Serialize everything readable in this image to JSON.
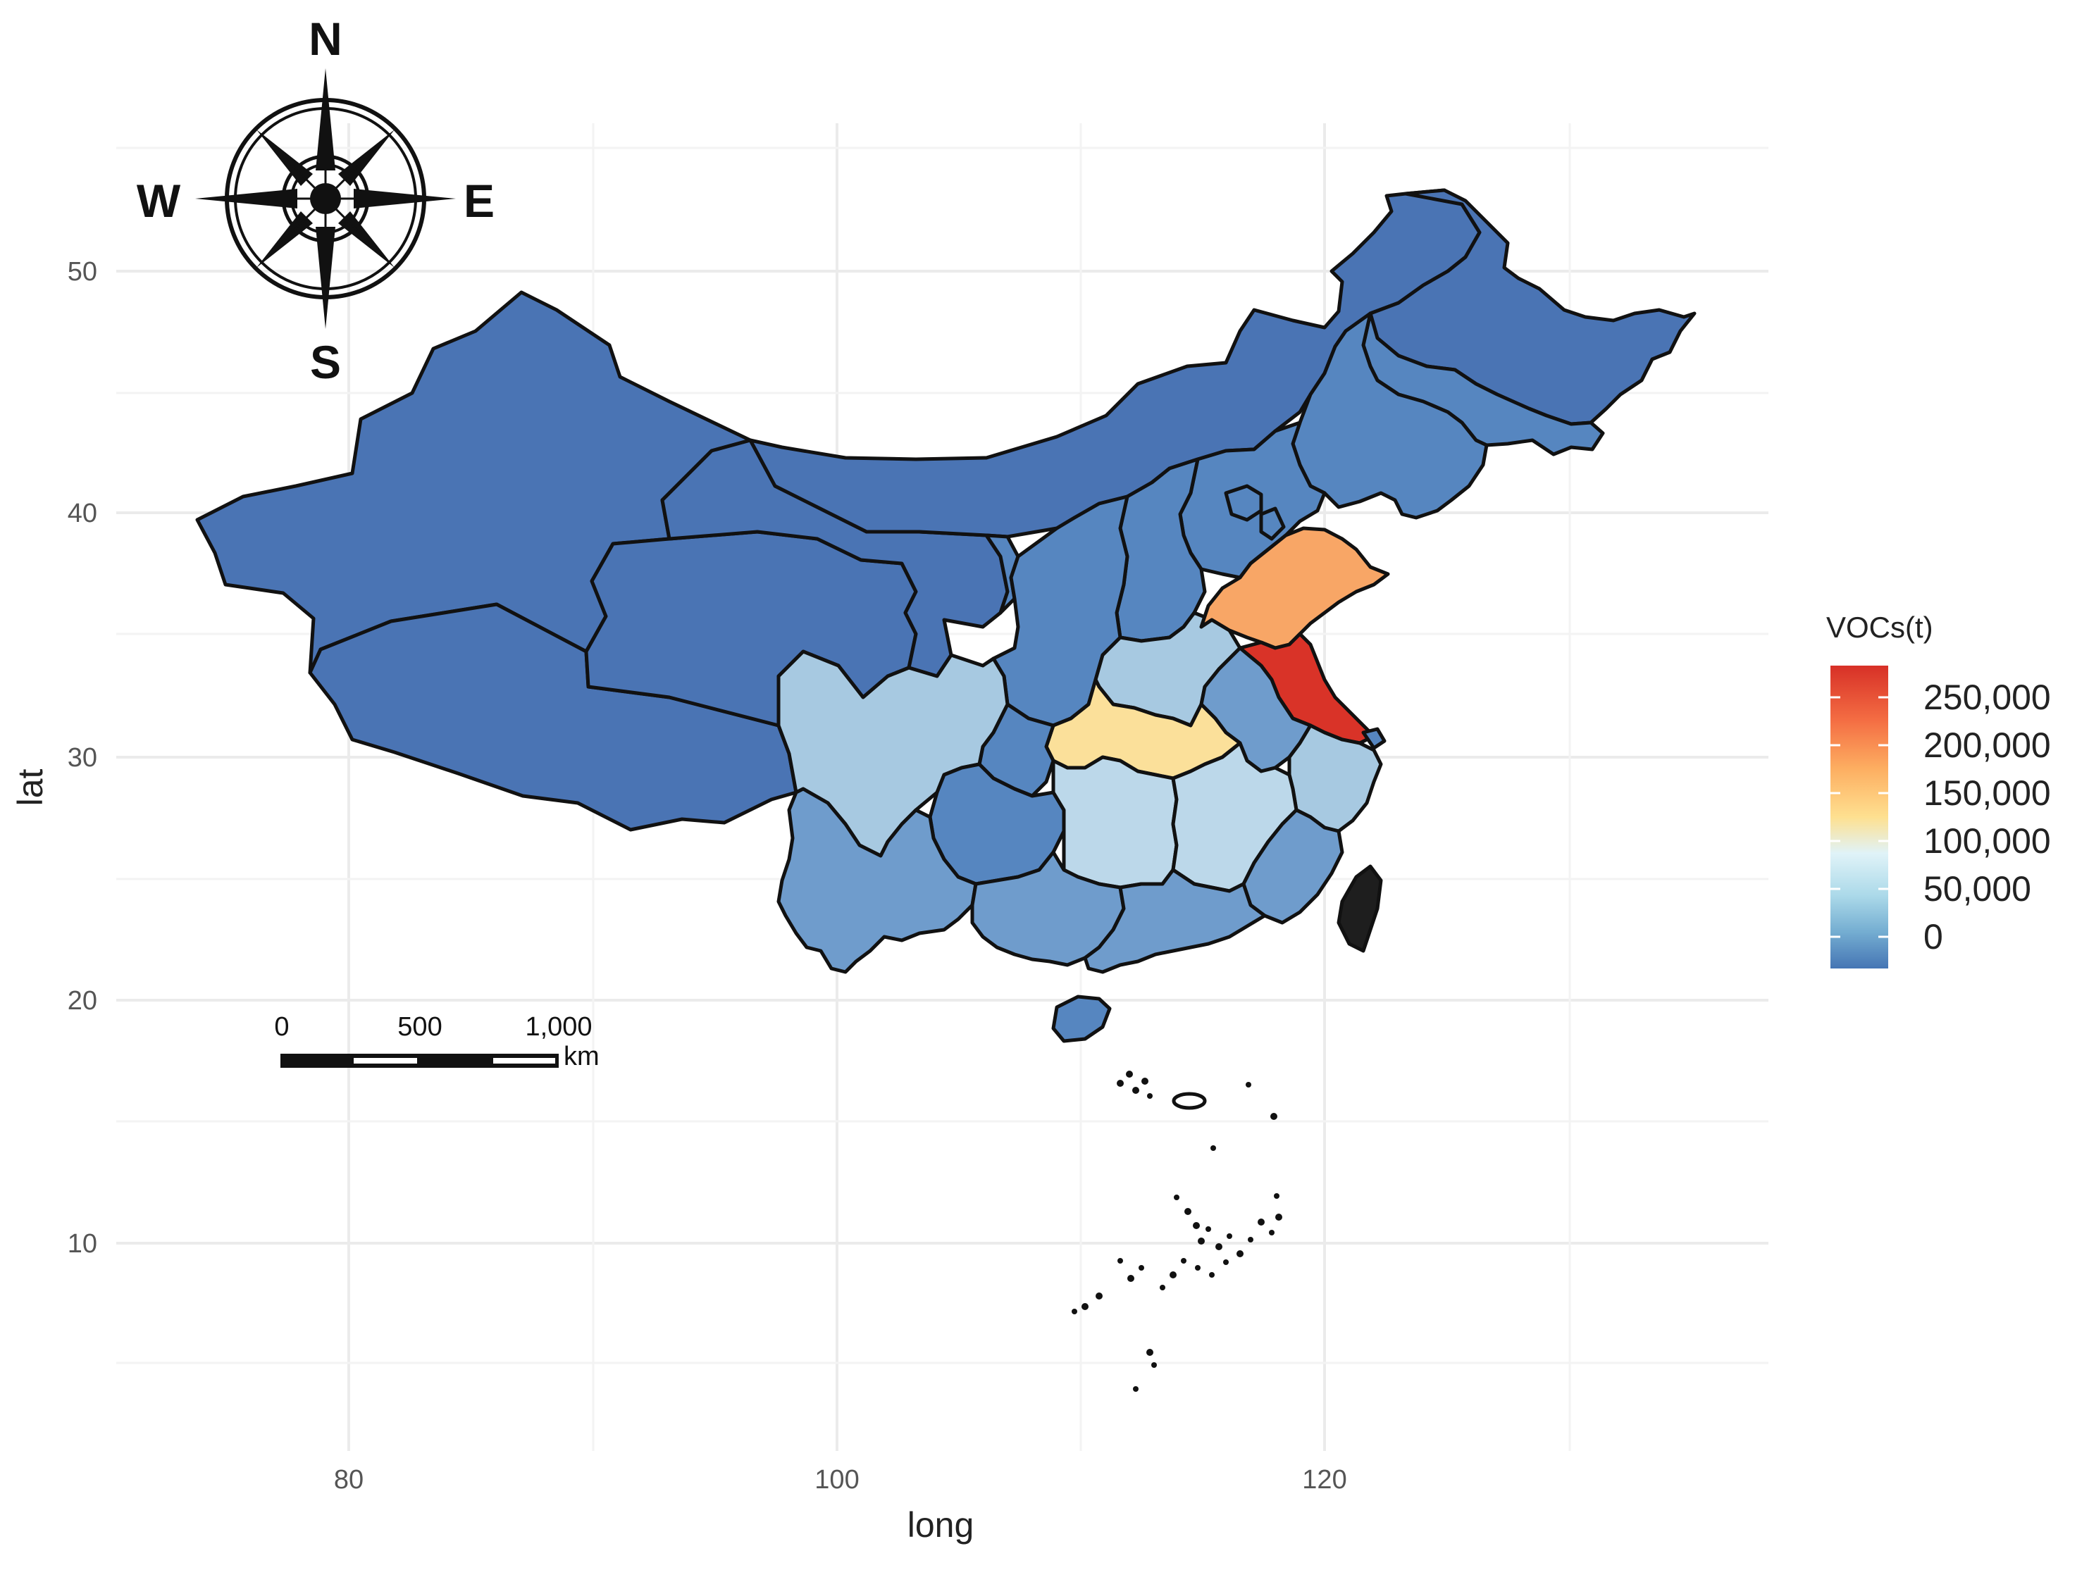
{
  "axes": {
    "x": {
      "title": "long",
      "ticks": [
        "80",
        "100",
        "120"
      ]
    },
    "y": {
      "title": "lat",
      "ticks": [
        "10",
        "20",
        "30",
        "40",
        "50"
      ]
    }
  },
  "legend": {
    "title": "VOCs(t)",
    "labels": [
      "250,000",
      "200,000",
      "150,000",
      "100,000",
      "50,000",
      "0"
    ],
    "colors": [
      "#d73027",
      "#f46d43",
      "#fdae61",
      "#fee090",
      "#e0f3f8",
      "#abd9e9",
      "#74add1",
      "#4575b4"
    ]
  },
  "compass": {
    "north": "N",
    "south": "S",
    "east": "E",
    "west": "W"
  },
  "scale_bar": {
    "labels": [
      "0",
      "500",
      "1,000"
    ],
    "unit": "km"
  },
  "region_colors": {
    "very_low": "#4a74b4",
    "low": "#5686c0",
    "low_mid": "#6f9ccc",
    "mid": "#a7c9e1",
    "mid_high": "#bcd8ea",
    "hubei": "#fbe09a",
    "shandong": "#f8a666",
    "jiangsu": "#d93328",
    "no_data": "#1e1e1e"
  }
}
